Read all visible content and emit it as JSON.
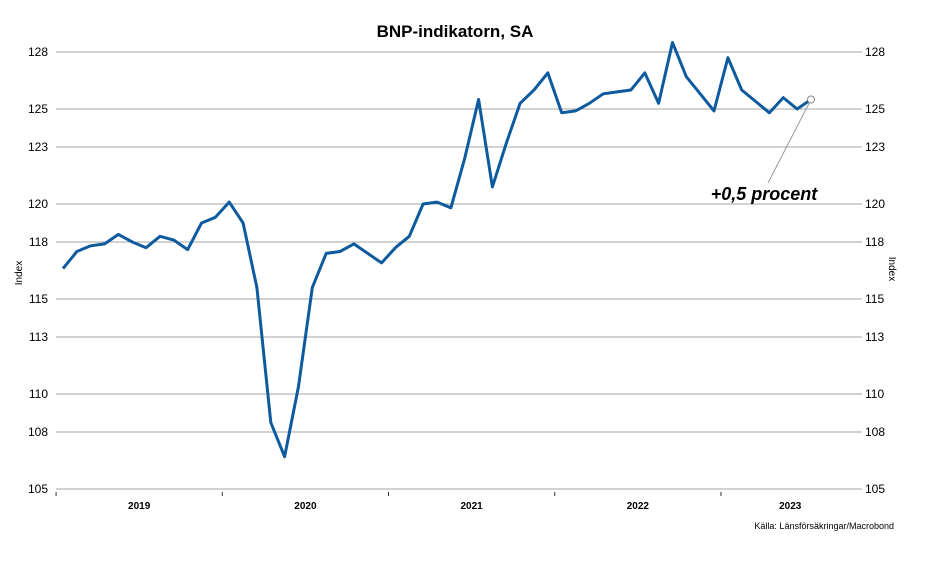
{
  "chart_data": {
    "type": "line",
    "title": "BNP-indikatorn, SA",
    "ylabel_left": "Index",
    "ylabel_right": "Index",
    "source": "Källa: Länsförsäkringar/Macrobond",
    "ylim": [
      105,
      128
    ],
    "y_ticks": [
      105,
      108,
      110,
      113,
      115,
      118,
      120,
      123,
      125,
      128
    ],
    "year_labels": [
      "2019",
      "2020",
      "2021",
      "2022",
      "2023"
    ],
    "annotation": "+0,5 procent",
    "series": [
      {
        "name": "BNP-indikatorn",
        "color": "#0e5a9e",
        "x": [
          0,
          1,
          2,
          3,
          4,
          5,
          6,
          7,
          8,
          9,
          10,
          11,
          12,
          13,
          14,
          15,
          16,
          17,
          18,
          19,
          20,
          21,
          22,
          23,
          24,
          25,
          26,
          27,
          28,
          29,
          30,
          31,
          32,
          33,
          34,
          35,
          36,
          37,
          38,
          39,
          40,
          41,
          42,
          43,
          44,
          45,
          46,
          47,
          48,
          49,
          50,
          51,
          52,
          53,
          54
        ],
        "values": [
          116.6,
          117.5,
          117.8,
          117.9,
          118.4,
          118.0,
          117.7,
          118.3,
          118.1,
          117.6,
          119.0,
          119.3,
          120.1,
          119.0,
          115.6,
          108.5,
          106.7,
          110.4,
          115.6,
          117.4,
          117.5,
          117.9,
          117.4,
          116.9,
          117.7,
          118.3,
          120.0,
          120.1,
          119.8,
          122.4,
          125.5,
          120.9,
          123.2,
          125.3,
          126.0,
          126.9,
          124.8,
          124.9,
          125.3,
          125.8,
          125.9,
          126.0,
          126.9,
          125.3,
          128.5,
          126.7,
          125.8,
          124.9,
          127.7,
          126.0,
          125.4,
          124.8,
          125.6,
          125.0,
          125.5
        ]
      }
    ]
  }
}
